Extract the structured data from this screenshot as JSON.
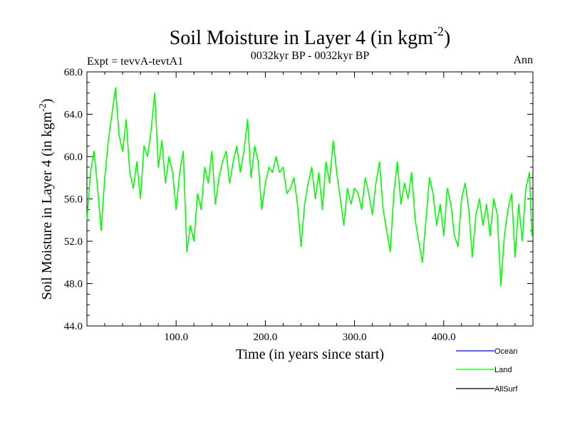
{
  "chart_data": {
    "type": "line",
    "title": "Soil Moisture in Layer 4 (in kgm",
    "title_superscript": "-2",
    "title_suffix": ")",
    "subtitle_left": "Expt = tevvA-tevtA1",
    "subtitle_center": "0032kyr BP - 0032kyr BP",
    "subtitle_right": "Ann",
    "xlabel": "Time (in years since start)",
    "ylabel": "Soil Moisture in Layer 4 (in kgm",
    "ylabel_superscript": "-2",
    "ylabel_suffix": ")",
    "xlim": [
      0,
      500
    ],
    "ylim": [
      44,
      68
    ],
    "x_ticks": [
      100,
      200,
      300,
      400
    ],
    "x_tick_labels": [
      "100.0",
      "200.0",
      "300.0",
      "400.0"
    ],
    "y_ticks": [
      44,
      48,
      52,
      56,
      60,
      64,
      68
    ],
    "y_tick_labels": [
      "44.0",
      "48.0",
      "52.0",
      "56.0",
      "60.0",
      "64.0",
      "68.0"
    ],
    "grid": false,
    "legend_position": "bottom-right, below plot",
    "legend": [
      {
        "name": "Ocean",
        "color": "#0000ff"
      },
      {
        "name": "Land",
        "color": "#00ff00"
      },
      {
        "name": "AllSurf",
        "color": "#000000"
      }
    ],
    "series": [
      {
        "name": "Land",
        "color": "#00ff00",
        "x": [
          0,
          4,
          8,
          12,
          16,
          20,
          24,
          28,
          32,
          36,
          40,
          44,
          48,
          52,
          56,
          60,
          64,
          68,
          72,
          76,
          80,
          84,
          88,
          92,
          96,
          100,
          104,
          108,
          112,
          116,
          120,
          124,
          128,
          132,
          136,
          140,
          144,
          148,
          152,
          156,
          160,
          164,
          168,
          172,
          176,
          180,
          184,
          188,
          192,
          196,
          200,
          204,
          208,
          212,
          216,
          220,
          224,
          228,
          232,
          236,
          240,
          244,
          248,
          252,
          256,
          260,
          264,
          268,
          272,
          276,
          280,
          284,
          288,
          292,
          296,
          300,
          304,
          308,
          312,
          316,
          320,
          324,
          328,
          332,
          336,
          340,
          344,
          348,
          352,
          356,
          360,
          364,
          368,
          372,
          376,
          380,
          384,
          388,
          392,
          396,
          400,
          404,
          408,
          412,
          416,
          420,
          424,
          428,
          432,
          436,
          440,
          444,
          448,
          452,
          456,
          460,
          464,
          468,
          472,
          476,
          480,
          484,
          488,
          492,
          496,
          499
        ],
        "values": [
          54.0,
          58.5,
          60.5,
          57.0,
          53.0,
          58.0,
          61.5,
          64.0,
          66.5,
          62.0,
          60.5,
          63.5,
          58.5,
          57.0,
          59.5,
          56.0,
          61.0,
          60.0,
          62.5,
          66.0,
          59.0,
          61.5,
          57.5,
          60.0,
          58.5,
          55.0,
          58.5,
          60.5,
          51.0,
          53.5,
          52.0,
          56.5,
          55.0,
          59.0,
          57.5,
          60.5,
          55.5,
          58.0,
          59.5,
          60.5,
          57.5,
          59.5,
          61.0,
          58.5,
          60.5,
          63.5,
          58.0,
          61.0,
          59.5,
          55.0,
          57.5,
          59.0,
          58.5,
          60.0,
          58.5,
          59.0,
          56.5,
          57.0,
          58.0,
          55.5,
          51.5,
          55.5,
          57.5,
          59.0,
          56.0,
          58.5,
          55.0,
          59.5,
          57.5,
          61.5,
          58.5,
          56.0,
          53.5,
          57.0,
          55.5,
          57.0,
          56.5,
          55.0,
          58.0,
          56.5,
          54.5,
          57.5,
          59.5,
          55.0,
          53.0,
          51.0,
          56.5,
          59.5,
          55.5,
          57.5,
          56.0,
          58.5,
          54.0,
          52.0,
          50.0,
          54.0,
          58.0,
          56.5,
          53.5,
          55.5,
          52.5,
          57.0,
          55.5,
          52.5,
          51.5,
          56.0,
          57.5,
          55.0,
          50.5,
          54.5,
          56.0,
          53.5,
          55.5,
          52.5,
          56.0,
          54.5,
          47.8,
          52.5,
          55.0,
          56.5,
          50.5,
          55.5,
          52.0,
          57.0,
          58.5,
          52.5
        ]
      }
    ]
  }
}
